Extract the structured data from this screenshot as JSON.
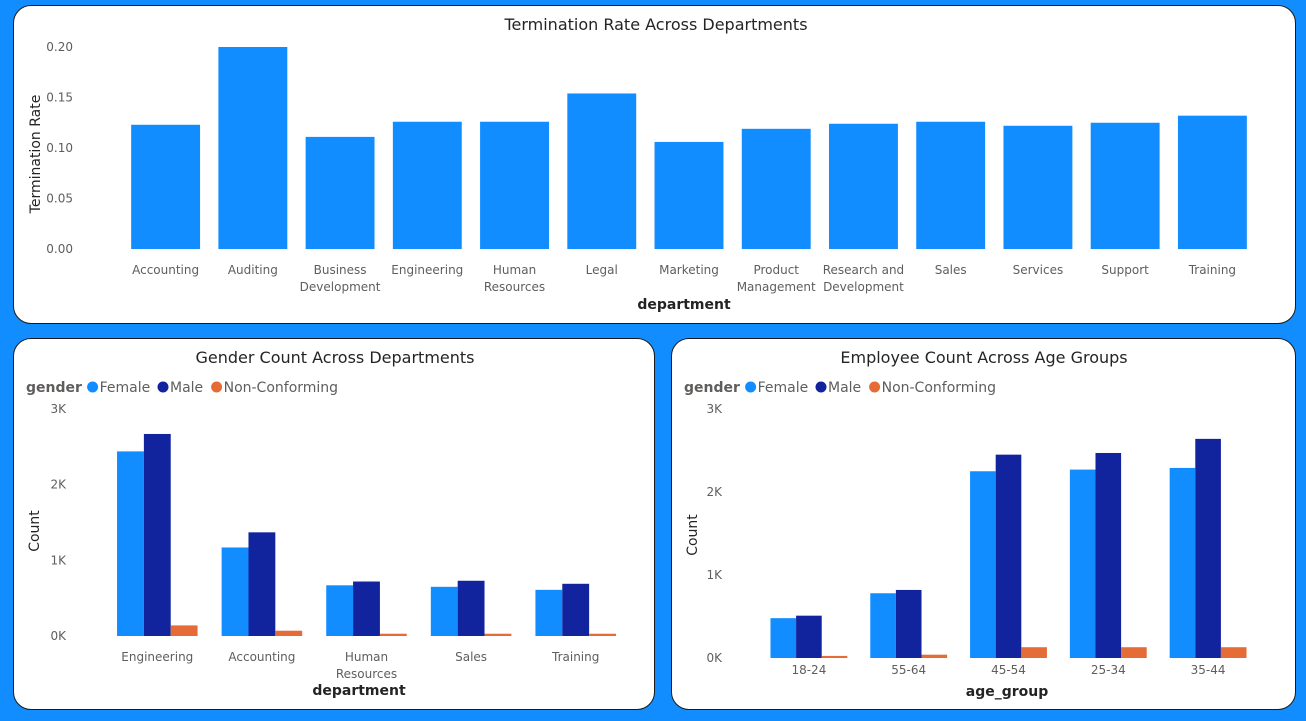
{
  "chart_data": [
    {
      "type": "bar",
      "title": "Termination Rate Across Departments",
      "xlabel": "department",
      "ylabel": "Termination Rate",
      "ylim": [
        0,
        0.2
      ],
      "yticks": [
        "0.00",
        "0.05",
        "0.10",
        "0.15",
        "0.20"
      ],
      "categories": [
        "Accounting",
        "Auditing",
        "Business Development",
        "Engineering",
        "Human Resources",
        "Legal",
        "Marketing",
        "Product Management",
        "Research and Development",
        "Sales",
        "Services",
        "Support",
        "Training"
      ],
      "category_lines": [
        [
          "Accounting"
        ],
        [
          "Auditing"
        ],
        [
          "Business",
          "Development"
        ],
        [
          "Engineering"
        ],
        [
          "Human",
          "Resources"
        ],
        [
          "Legal"
        ],
        [
          "Marketing"
        ],
        [
          "Product",
          "Management"
        ],
        [
          "Research and",
          "Development"
        ],
        [
          "Sales"
        ],
        [
          "Services"
        ],
        [
          "Support"
        ],
        [
          "Training"
        ]
      ],
      "values": [
        0.123,
        0.2,
        0.111,
        0.126,
        0.126,
        0.154,
        0.106,
        0.119,
        0.124,
        0.126,
        0.122,
        0.125,
        0.132
      ],
      "color": "#118DFF"
    },
    {
      "type": "bar",
      "title": "Gender Count Across Departments",
      "xlabel": "department",
      "ylabel": "Count",
      "ylim": [
        0,
        3000
      ],
      "yticks": [
        "0K",
        "1K",
        "2K",
        "3K"
      ],
      "legend_title": "gender",
      "categories": [
        "Engineering",
        "Accounting",
        "Human Resources",
        "Sales",
        "Training"
      ],
      "category_lines": [
        [
          "Engineering"
        ],
        [
          "Accounting"
        ],
        [
          "Human",
          "Resources"
        ],
        [
          "Sales"
        ],
        [
          "Training"
        ]
      ],
      "series": [
        {
          "name": "Female",
          "color": "#118DFF",
          "values": [
            2440,
            1170,
            670,
            650,
            610
          ]
        },
        {
          "name": "Male",
          "color": "#12239E",
          "values": [
            2670,
            1370,
            720,
            730,
            690
          ]
        },
        {
          "name": "Non-Conforming",
          "color": "#E66C37",
          "values": [
            140,
            70,
            30,
            30,
            30
          ]
        }
      ]
    },
    {
      "type": "bar",
      "title": "Employee Count Across Age Groups",
      "xlabel": "age_group",
      "ylabel": "Count",
      "ylim": [
        0,
        3000
      ],
      "yticks": [
        "0K",
        "1K",
        "2K",
        "3K"
      ],
      "legend_title": "gender",
      "categories": [
        "18-24",
        "55-64",
        "45-54",
        "25-34",
        "35-44"
      ],
      "category_lines": [
        [
          "18-24"
        ],
        [
          "55-64"
        ],
        [
          "45-54"
        ],
        [
          "25-34"
        ],
        [
          "35-44"
        ]
      ],
      "series": [
        {
          "name": "Female",
          "color": "#118DFF",
          "values": [
            480,
            780,
            2250,
            2270,
            2290
          ]
        },
        {
          "name": "Male",
          "color": "#12239E",
          "values": [
            510,
            820,
            2450,
            2470,
            2640
          ]
        },
        {
          "name": "Non-Conforming",
          "color": "#E66C37",
          "values": [
            25,
            40,
            130,
            130,
            130
          ]
        }
      ]
    }
  ]
}
